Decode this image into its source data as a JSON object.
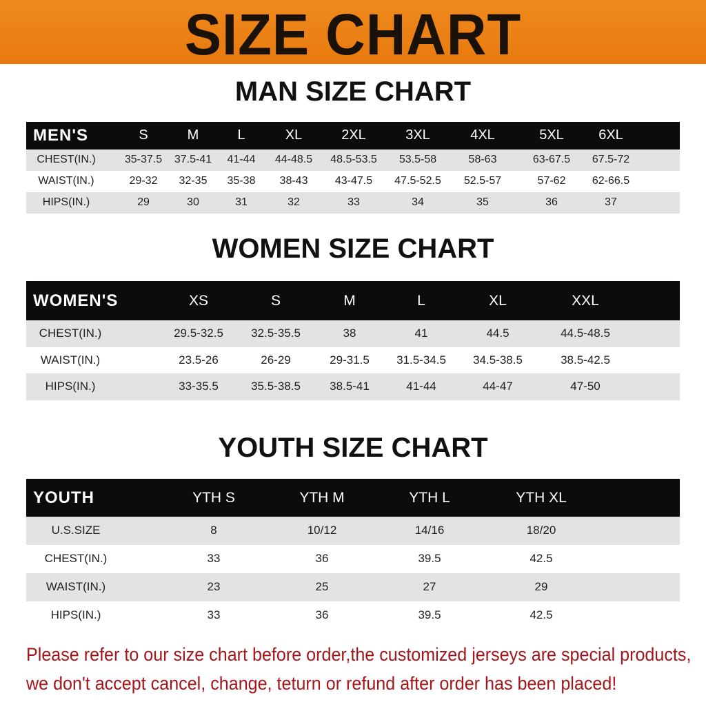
{
  "banner_title": "SIZE CHART",
  "men": {
    "title": "MAN SIZE CHART",
    "header": [
      "MEN'S",
      "S",
      "M",
      "L",
      "XL",
      "2XL",
      "3XL",
      "4XL",
      "5XL",
      "6XL"
    ],
    "rows": [
      [
        "CHEST(IN.)",
        "35-37.5",
        "37.5-41",
        "41-44",
        "44-48.5",
        "48.5-53.5",
        "53.5-58",
        "58-63",
        "63-67.5",
        "67.5-72"
      ],
      [
        "WAIST(IN.)",
        "29-32",
        "32-35",
        "35-38",
        "38-43",
        "43-47.5",
        "47.5-52.5",
        "52.5-57",
        "57-62",
        "62-66.5"
      ],
      [
        "HIPS(IN.)",
        "29",
        "30",
        "31",
        "32",
        "33",
        "34",
        "35",
        "36",
        "37"
      ]
    ]
  },
  "women": {
    "title": "WOMEN SIZE CHART",
    "header": [
      "WOMEN'S",
      "XS",
      "S",
      "M",
      "L",
      "XL",
      "XXL"
    ],
    "rows": [
      [
        "CHEST(IN.)",
        "29.5-32.5",
        "32.5-35.5",
        "38",
        "41",
        "44.5",
        "44.5-48.5"
      ],
      [
        "WAIST(IN.)",
        "23.5-26",
        "26-29",
        "29-31.5",
        "31.5-34.5",
        "34.5-38.5",
        "38.5-42.5"
      ],
      [
        "HIPS(IN.)",
        "33-35.5",
        "35.5-38.5",
        "38.5-41",
        "41-44",
        "44-47",
        "47-50"
      ]
    ]
  },
  "youth": {
    "title": "YOUTH SIZE CHART",
    "header": [
      "YOUTH",
      "YTH S",
      "YTH M",
      "YTH L",
      "YTH XL"
    ],
    "rows": [
      [
        "U.S.SIZE",
        "8",
        "10/12",
        "14/16",
        "18/20"
      ],
      [
        "CHEST(IN.)",
        "33",
        "36",
        "39.5",
        "42.5"
      ],
      [
        "WAIST(IN.)",
        "23",
        "25",
        "27",
        "29"
      ],
      [
        "HIPS(IN.)",
        "33",
        "36",
        "39.5",
        "42.5"
      ]
    ]
  },
  "notice": {
    "line1": "Please refer to our size chart before order,the customized jerseys are special products,",
    "line2": "we don't accept cancel, change, teturn or refund after order has been placed!"
  },
  "colors": {
    "banner": "#ee8318",
    "header_bg": "#0d0b0b",
    "row_alt": "#e3e3e3",
    "notice": "#a3161a"
  }
}
